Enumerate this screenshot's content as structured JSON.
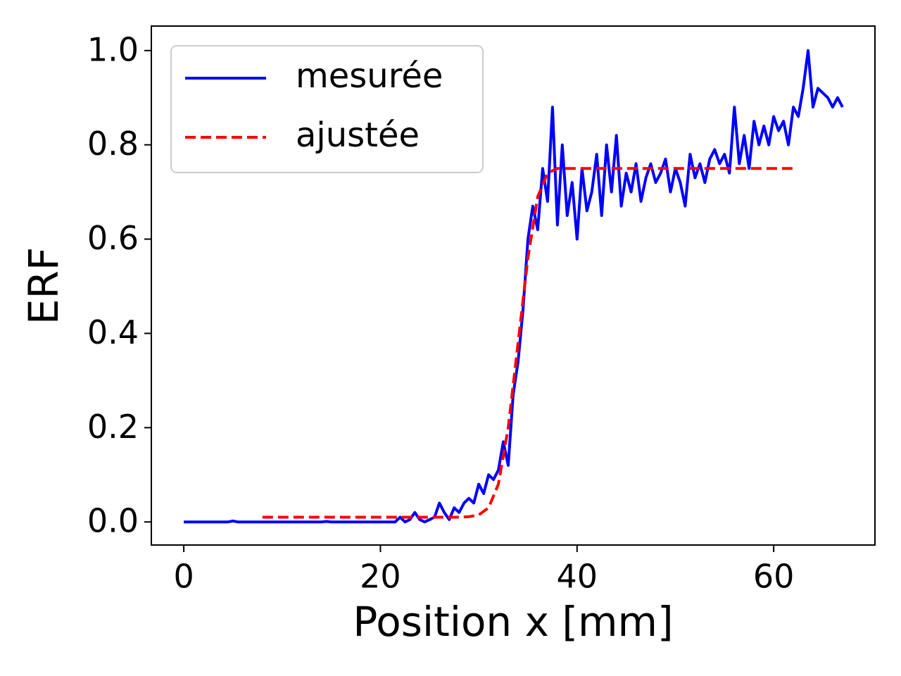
{
  "chart_data": {
    "type": "line",
    "xlabel": "Position x [mm]",
    "ylabel": "ERF",
    "xlim": [
      -3.3,
      70.3
    ],
    "ylim": [
      -0.049,
      1.052
    ],
    "xticks": [
      0,
      20,
      40,
      60
    ],
    "yticks": [
      {
        "value": 0,
        "label": "0.0"
      },
      {
        "value": 0.2,
        "label": "0.2"
      },
      {
        "value": 0.4,
        "label": "0.4"
      },
      {
        "value": 0.6,
        "label": "0.6"
      },
      {
        "value": 0.8,
        "label": "0.8"
      },
      {
        "value": 1.0,
        "label": "1.0"
      }
    ],
    "legend": "upper left",
    "series": [
      {
        "name": "mesurée",
        "color": "#0000ff",
        "dash": false,
        "x": [
          0,
          0.5,
          1,
          1.5,
          2,
          2.5,
          3,
          3.5,
          4,
          4.5,
          5,
          5.5,
          6,
          6.5,
          7,
          7.5,
          8,
          8.5,
          9,
          9.5,
          10,
          10.5,
          11,
          11.5,
          12,
          12.5,
          13,
          13.5,
          14,
          14.5,
          15,
          15.5,
          16,
          16.5,
          17,
          17.5,
          18,
          18.5,
          19,
          19.5,
          20,
          20.5,
          21,
          21.5,
          22,
          22.5,
          23,
          23.5,
          24,
          24.5,
          25,
          25.5,
          26,
          26.5,
          27,
          27.5,
          28,
          28.5,
          29,
          29.5,
          30,
          30.5,
          31,
          31.5,
          32,
          32.5,
          33,
          33.5,
          34,
          34.5,
          35,
          35.5,
          36,
          36.5,
          37,
          37.5,
          38,
          38.5,
          39,
          39.5,
          40,
          40.5,
          41,
          41.5,
          42,
          42.5,
          43,
          43.5,
          44,
          44.5,
          45,
          45.5,
          46,
          46.5,
          47,
          47.5,
          48,
          48.5,
          49,
          49.5,
          50,
          50.5,
          51,
          51.5,
          52,
          52.5,
          53,
          53.5,
          54,
          54.5,
          55,
          55.5,
          56,
          56.5,
          57,
          57.5,
          58,
          58.5,
          59,
          59.5,
          60,
          60.5,
          61,
          61.5,
          62,
          62.5,
          63,
          63.5,
          64,
          64.5,
          65,
          65.5,
          66,
          66.5,
          67
        ],
        "values": [
          0,
          0,
          0,
          0,
          0,
          0,
          0,
          0,
          0,
          0,
          0.002,
          0,
          0,
          0,
          0,
          0,
          0,
          0,
          0,
          0,
          0,
          0,
          0,
          0,
          0,
          0,
          0,
          0,
          0,
          0.001,
          0,
          0,
          0,
          0,
          0,
          0,
          0,
          0,
          0,
          0,
          0,
          0,
          0,
          0,
          0.01,
          0,
          0.005,
          0.02,
          0.005,
          0,
          0.005,
          0.01,
          0.04,
          0.02,
          0.005,
          0.03,
          0.02,
          0.04,
          0.05,
          0.04,
          0.08,
          0.06,
          0.1,
          0.09,
          0.11,
          0.17,
          0.12,
          0.27,
          0.34,
          0.45,
          0.6,
          0.67,
          0.62,
          0.75,
          0.68,
          0.88,
          0.63,
          0.8,
          0.65,
          0.72,
          0.6,
          0.75,
          0.66,
          0.7,
          0.78,
          0.65,
          0.8,
          0.7,
          0.82,
          0.67,
          0.74,
          0.7,
          0.76,
          0.68,
          0.73,
          0.76,
          0.72,
          0.74,
          0.77,
          0.7,
          0.75,
          0.72,
          0.67,
          0.78,
          0.73,
          0.76,
          0.72,
          0.77,
          0.79,
          0.76,
          0.78,
          0.74,
          0.88,
          0.76,
          0.82,
          0.75,
          0.85,
          0.8,
          0.84,
          0.8,
          0.86,
          0.83,
          0.85,
          0.8,
          0.88,
          0.86,
          0.92,
          1.0,
          0.88,
          0.92,
          0.91,
          0.9,
          0.88,
          0.9,
          0.88
        ]
      },
      {
        "name": "ajustée",
        "color": "#ff0000",
        "dash": true,
        "x": [
          8,
          10,
          12,
          14,
          16,
          18,
          20,
          22,
          24,
          26,
          28,
          29,
          30,
          31,
          32,
          33,
          34,
          35,
          36,
          37,
          38,
          40,
          44,
          48,
          52,
          56,
          60,
          62
        ],
        "values": [
          0.01,
          0.01,
          0.01,
          0.01,
          0.01,
          0.01,
          0.01,
          0.01,
          0.01,
          0.01,
          0.01,
          0.011,
          0.015,
          0.03,
          0.08,
          0.2,
          0.38,
          0.56,
          0.69,
          0.74,
          0.75,
          0.75,
          0.75,
          0.75,
          0.75,
          0.75,
          0.75,
          0.75
        ]
      }
    ]
  }
}
